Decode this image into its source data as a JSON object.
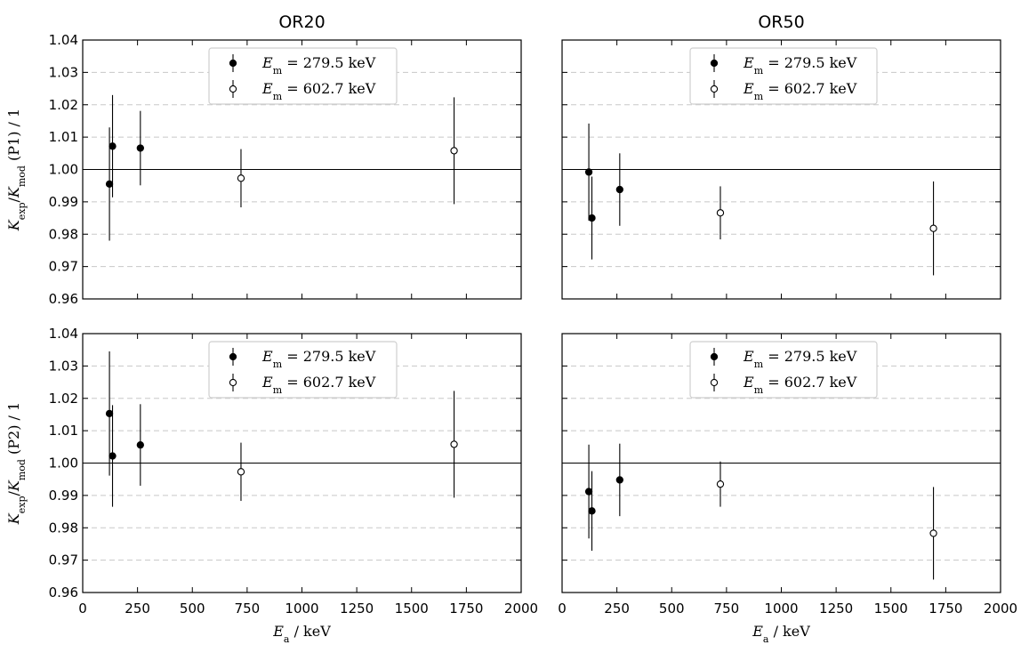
{
  "chart_data": [
    {
      "type": "scatter",
      "title": "OR20",
      "xlabel": "E_a / keV",
      "ylabel": "K_exp/K_mod (P1) / 1",
      "xlim": [
        0,
        2000
      ],
      "ylim": [
        0.96,
        1.04
      ],
      "xticks": [
        0,
        250,
        500,
        750,
        1000,
        1250,
        1500,
        1750,
        2000
      ],
      "yticks": [
        "0.96",
        "0.97",
        "0.98",
        "0.99",
        "1.00",
        "1.01",
        "1.02",
        "1.03",
        "1.04"
      ],
      "reference_line": 1.0,
      "grid": "horizontal dashed",
      "legend_position": "top-center",
      "series": [
        {
          "name": "E_m = 279.5 keV",
          "marker": "filled",
          "x": [
            122,
            136,
            263
          ],
          "y": [
            0.9955,
            1.0072,
            1.0066
          ],
          "err": [
            0.0175,
            0.0158,
            0.0115
          ]
        },
        {
          "name": "E_m = 602.7 keV",
          "marker": "open",
          "x": [
            722,
            1694
          ],
          "y": [
            0.9973,
            1.0058
          ],
          "err": [
            0.009,
            0.0165
          ]
        }
      ]
    },
    {
      "type": "scatter",
      "title": "OR50",
      "xlabel": "E_a / keV",
      "ylabel": "",
      "xlim": [
        0,
        2000
      ],
      "ylim": [
        0.96,
        1.04
      ],
      "xticks": [
        0,
        250,
        500,
        750,
        1000,
        1250,
        1500,
        1750,
        2000
      ],
      "yticks": [],
      "reference_line": 1.0,
      "grid": "horizontal dashed",
      "legend_position": "top-center",
      "series": [
        {
          "name": "E_m = 279.5 keV",
          "marker": "filled",
          "x": [
            122,
            136,
            263
          ],
          "y": [
            0.9992,
            0.985,
            0.9938
          ],
          "err": [
            0.015,
            0.0128,
            0.0112
          ]
        },
        {
          "name": "E_m = 602.7 keV",
          "marker": "open",
          "x": [
            722,
            1694
          ],
          "y": [
            0.9866,
            0.9818
          ],
          "err": [
            0.0082,
            0.0145
          ]
        }
      ]
    },
    {
      "type": "scatter",
      "title": "",
      "xlabel": "E_a / keV",
      "ylabel": "K_exp/K_mod (P2) / 1",
      "xlim": [
        0,
        2000
      ],
      "ylim": [
        0.96,
        1.04
      ],
      "xticks": [
        0,
        250,
        500,
        750,
        1000,
        1250,
        1500,
        1750,
        2000
      ],
      "yticks": [
        "0.96",
        "0.97",
        "0.98",
        "0.99",
        "1.00",
        "1.01",
        "1.02",
        "1.03",
        "1.04"
      ],
      "reference_line": 1.0,
      "grid": "horizontal dashed",
      "legend_position": "top-center",
      "series": [
        {
          "name": "E_m = 279.5 keV",
          "marker": "filled",
          "x": [
            122,
            136,
            263
          ],
          "y": [
            1.0153,
            1.0022,
            1.0056
          ],
          "err": [
            0.0192,
            0.0157,
            0.0126
          ]
        },
        {
          "name": "E_m = 602.7 keV",
          "marker": "open",
          "x": [
            722,
            1694
          ],
          "y": [
            0.9973,
            1.0058
          ],
          "err": [
            0.009,
            0.0165
          ]
        }
      ]
    },
    {
      "type": "scatter",
      "title": "",
      "xlabel": "E_a / keV",
      "ylabel": "",
      "xlim": [
        0,
        2000
      ],
      "ylim": [
        0.96,
        1.04
      ],
      "xticks": [
        0,
        250,
        500,
        750,
        1000,
        1250,
        1500,
        1750,
        2000
      ],
      "yticks": [],
      "reference_line": 1.0,
      "grid": "horizontal dashed",
      "legend_position": "top-center",
      "series": [
        {
          "name": "E_m = 279.5 keV",
          "marker": "filled",
          "x": [
            122,
            136,
            263
          ],
          "y": [
            0.9912,
            0.9852,
            0.9948
          ],
          "err": [
            0.0145,
            0.0123,
            0.0112
          ]
        },
        {
          "name": "E_m = 602.7 keV",
          "marker": "open",
          "x": [
            722,
            1694
          ],
          "y": [
            0.9935,
            0.9783
          ],
          "err": [
            0.007,
            0.0143
          ]
        }
      ]
    }
  ]
}
